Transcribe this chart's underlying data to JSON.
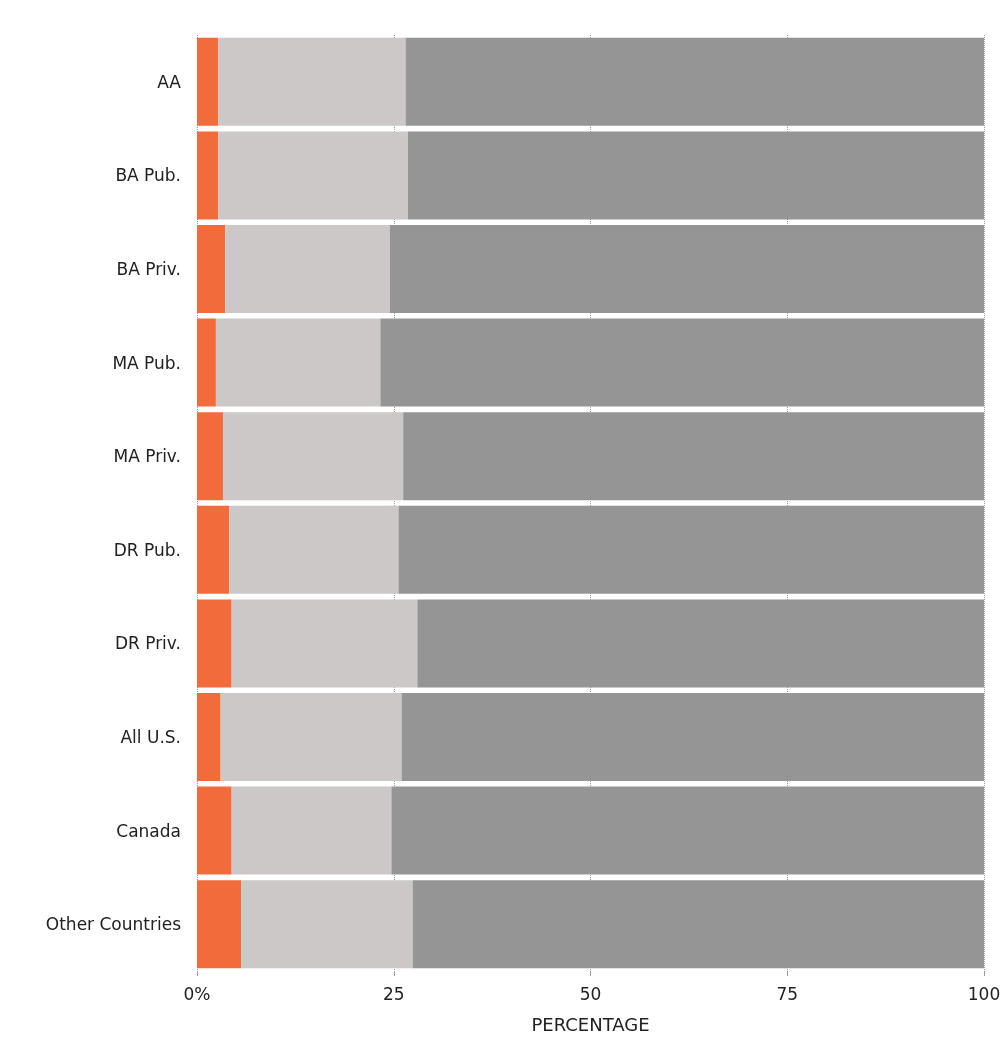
{
  "chart_data": {
    "type": "bar",
    "orientation": "horizontal",
    "stacked": true,
    "categories": [
      "AA",
      "BA Pub.",
      "BA Priv.",
      "MA Pub.",
      "MA Priv.",
      "DR Pub.",
      "DR Priv.",
      "All U.S.",
      "Canada",
      "Other Countries"
    ],
    "series": [
      {
        "color": "#f26b3a",
        "values": [
          2.7,
          2.7,
          3.6,
          2.4,
          3.3,
          4.1,
          4.4,
          3.0,
          4.4,
          5.6
        ]
      },
      {
        "color": "#cbc8c7",
        "values": [
          23.8,
          24.1,
          20.9,
          20.9,
          22.9,
          21.5,
          23.6,
          23.0,
          20.3,
          21.8
        ]
      },
      {
        "color": "#959595",
        "values": [
          73.5,
          73.2,
          75.5,
          76.7,
          73.8,
          74.4,
          72.0,
          74.0,
          75.3,
          72.6
        ]
      }
    ],
    "xlabel": "PERCENTAGE",
    "xlim": [
      0,
      100
    ],
    "xticks": [
      {
        "value": 0,
        "label": "0%"
      },
      25,
      50,
      75,
      100
    ],
    "grid": "x"
  }
}
